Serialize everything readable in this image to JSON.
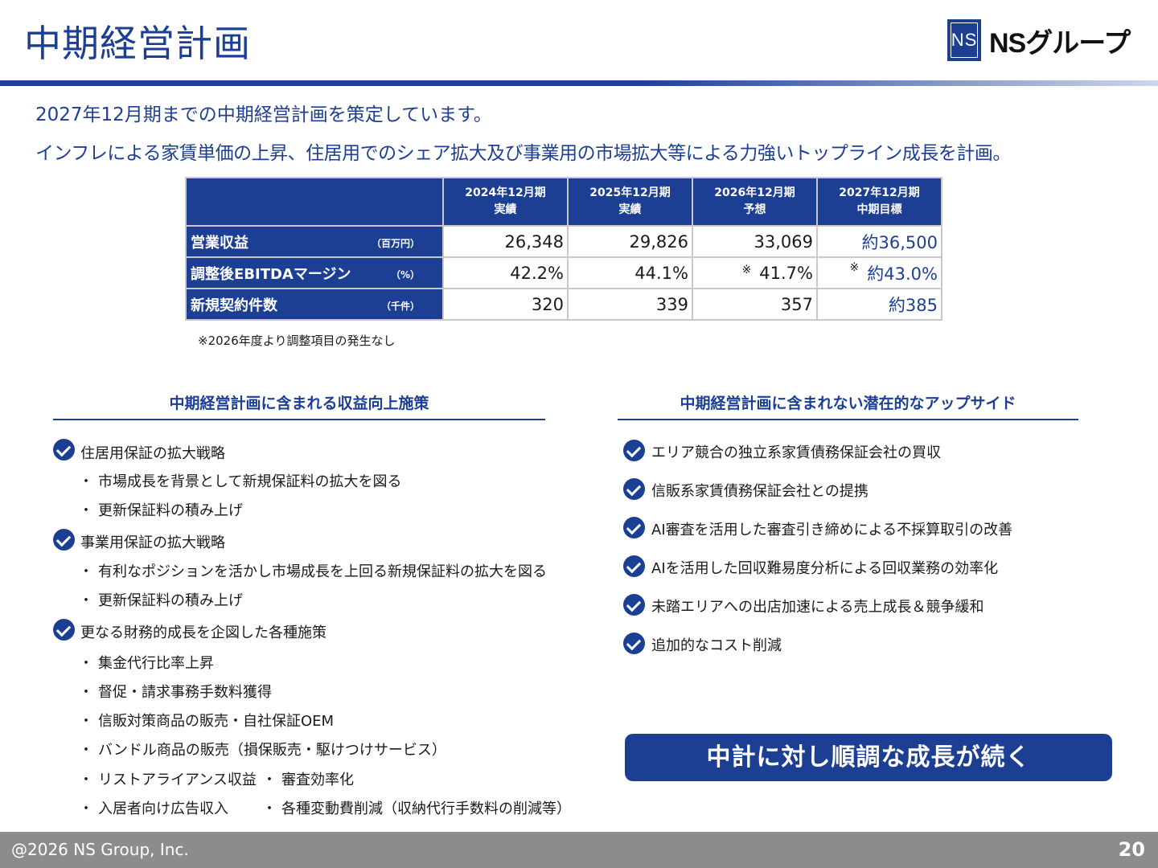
{
  "header": {
    "title": "中期経営計画",
    "logo_mark": "NS",
    "logo_text": "NSグループ"
  },
  "lead": {
    "line1": "2027年12月期までの中期経営計画を策定しています。",
    "line2": "インフレによる家賃単価の上昇、住居用でのシェア拡大及び事業用の市場拡大等による力強いトップライン成長を計画。"
  },
  "table": {
    "columns": [
      {
        "line1": "2024年12月期",
        "line2": "実績"
      },
      {
        "line1": "2025年12月期",
        "line2": "実績"
      },
      {
        "line1": "2026年12月期",
        "line2": "予想"
      },
      {
        "line1": "2027年12月期",
        "line2": "中期目標"
      }
    ],
    "rows": [
      {
        "label": "営業収益",
        "unit": "（百万円）",
        "values": [
          "26,348",
          "29,826",
          "33,069",
          "約36,500"
        ],
        "marks": [
          "",
          "",
          "",
          ""
        ]
      },
      {
        "label": "調整後EBITDAマージン",
        "unit": "（%）",
        "values": [
          "42.2%",
          "44.1%",
          "41.7%",
          "約43.0%"
        ],
        "marks": [
          "",
          "",
          "※",
          "※"
        ]
      },
      {
        "label": "新規契約件数",
        "unit": "（千件）",
        "values": [
          "320",
          "339",
          "357",
          "約385"
        ],
        "marks": [
          "",
          "",
          "",
          ""
        ]
      }
    ],
    "note": "※2026年度より調整項目の発生なし"
  },
  "left_section": {
    "heading": "中期経営計画に含まれる収益向上施策",
    "groups": [
      {
        "title": "住居用保証の拡大戦略",
        "items": [
          "市場成長を背景として新規保証料の拡大を図る",
          "更新保証料の積み上げ"
        ]
      },
      {
        "title": "事業用保証の拡大戦略",
        "items": [
          "有利なポジションを活かし市場成長を上回る新規保証料の拡大を図る",
          "更新保証料の積み上げ"
        ]
      },
      {
        "title": "更なる財務的成長を企図した各種施策",
        "items": [
          "集金代行比率上昇",
          "督促・請求事務手数料獲得",
          "信販対策商品の販売・自社保証OEM",
          "バンドル商品の販売（損保販売・駆けつけサービス）",
          "リストアライアンス収益",
          "入居者向け広告収入"
        ],
        "extra_items": [
          "審査効率化",
          "各種変動費削減（収納代行手数料の削減等）"
        ]
      }
    ],
    "bullet": "・"
  },
  "right_section": {
    "heading": "中期経営計画に含まれない潜在的なアップサイド",
    "items": [
      "エリア競合の独立系家賃債務保証会社の買収",
      "信販系家賃債務保証会社との提携",
      "AI審査を活用した審査引き締めによる不採算取引の改善",
      "AIを活用した回収難易度分析による回収業務の効率化",
      "未踏エリアへの出店加速による売上成長＆競争緩和",
      "追加的なコスト削減"
    ]
  },
  "banner": "中計に対し順調な成長が続く",
  "footer": {
    "copyright": "@2026 NS Group, Inc.",
    "page": "20"
  },
  "colors": {
    "brand_navy": "#1c3f94",
    "footer_gray": "#8c8c8c"
  }
}
